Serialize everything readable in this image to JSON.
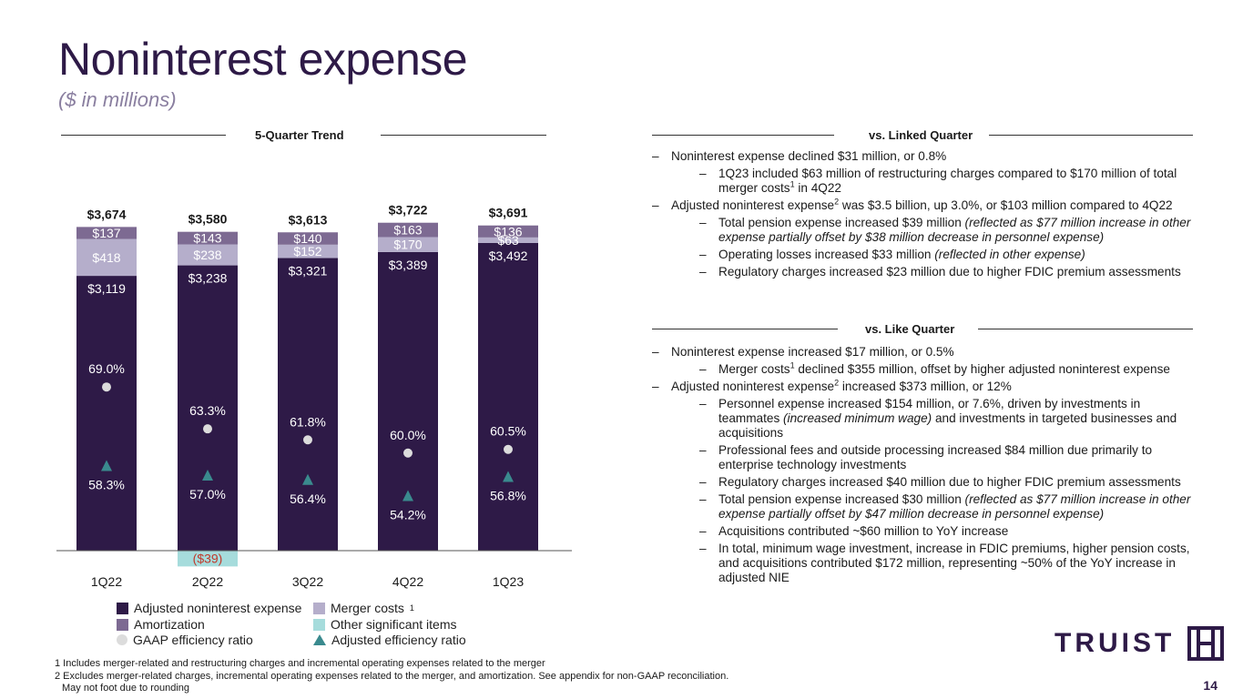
{
  "title": "Noninterest expense",
  "subtitle": "($ in millions)",
  "left_header": "5-Quarter Trend",
  "colors": {
    "adjusted": "#2e1a47",
    "amortization": "#7d6a92",
    "merger": "#b5aecb",
    "other": "#a6dcdc",
    "gaap": "#dcdcdc",
    "adjusted_ratio": "#3a8a8e",
    "negative_text": "#c0392b"
  },
  "chart_data": {
    "type": "bar",
    "stacked": true,
    "categories": [
      "1Q22",
      "2Q22",
      "3Q22",
      "4Q22",
      "1Q23"
    ],
    "totals": [
      "$3,674",
      "$3,580",
      "$3,613",
      "$3,722",
      "$3,691"
    ],
    "series": [
      {
        "name": "Adjusted noninterest expense",
        "values": [
          3119,
          3238,
          3321,
          3389,
          3492
        ],
        "labels": [
          "$3,119",
          "$3,238",
          "$3,321",
          "$3,389",
          "$3,492"
        ]
      },
      {
        "name": "Merger costs",
        "values": [
          418,
          238,
          152,
          170,
          63
        ],
        "labels": [
          "$418",
          "$238",
          "$152",
          "$170",
          "$63"
        ]
      },
      {
        "name": "Amortization",
        "values": [
          137,
          143,
          140,
          163,
          136
        ],
        "labels": [
          "$137",
          "$143",
          "$140",
          "$163",
          "$136"
        ]
      },
      {
        "name": "Other significant items",
        "values": [
          0,
          -39,
          0,
          0,
          0
        ],
        "labels": [
          "",
          "($39)",
          "",
          "",
          ""
        ]
      }
    ],
    "ratios": [
      {
        "name": "GAAP efficiency ratio",
        "values": [
          69.0,
          63.3,
          61.8,
          60.0,
          60.5
        ],
        "labels": [
          "69.0%",
          "63.3%",
          "61.8%",
          "60.0%",
          "60.5%"
        ]
      },
      {
        "name": "Adjusted efficiency ratio",
        "values": [
          58.3,
          57.0,
          56.4,
          54.2,
          56.8
        ],
        "labels": [
          "58.3%",
          "57.0%",
          "56.4%",
          "54.2%",
          "56.8%"
        ]
      }
    ]
  },
  "legend": {
    "adjusted": "Adjusted noninterest expense",
    "merger": "Merger costs",
    "merger_sup": "1",
    "amortization": "Amortization",
    "other": "Other significant items",
    "gaap": "GAAP efficiency ratio",
    "adjusted_ratio": "Adjusted efficiency ratio"
  },
  "linked": {
    "header": "vs. Linked Quarter",
    "items": [
      {
        "level": 1,
        "dash": "–",
        "parts": [
          {
            "t": "Noninterest expense declined $31 million, or 0.8%"
          }
        ]
      },
      {
        "level": 2,
        "dash": "–",
        "parts": [
          {
            "t": "1Q23 included $63 million of restructuring charges compared to $170 million of total merger costs"
          },
          {
            "t": "1",
            "s": true
          },
          {
            "t": " in 4Q22"
          }
        ]
      },
      {
        "level": 1,
        "dash": "–",
        "parts": [
          {
            "t": "Adjusted noninterest expense"
          },
          {
            "t": "2",
            "s": true
          },
          {
            "t": " was $3.5 billion, up 3.0%, or $103 million compared to 4Q22"
          }
        ]
      },
      {
        "level": 2,
        "dash": "–",
        "parts": [
          {
            "t": "Total pension expense increased $39 million "
          },
          {
            "t": "(reflected as $77 million increase in other expense partially offset by $38 million decrease in personnel expense)",
            "i": true
          }
        ]
      },
      {
        "level": 2,
        "dash": "–",
        "parts": [
          {
            "t": "Operating losses increased $33 million "
          },
          {
            "t": "(reflected in other expense)",
            "i": true
          }
        ]
      },
      {
        "level": 2,
        "dash": "–",
        "parts": [
          {
            "t": "Regulatory charges increased $23 million due to higher FDIC premium assessments"
          }
        ]
      }
    ]
  },
  "like": {
    "header": "vs. Like Quarter",
    "items": [
      {
        "level": 1,
        "dash": "–",
        "parts": [
          {
            "t": "Noninterest expense increased $17 million, or 0.5%"
          }
        ]
      },
      {
        "level": 2,
        "dash": "–",
        "parts": [
          {
            "t": "Merger costs"
          },
          {
            "t": "1",
            "s": true
          },
          {
            "t": " declined $355 million, offset by higher adjusted noninterest expense"
          }
        ]
      },
      {
        "level": 1,
        "dash": "–",
        "parts": [
          {
            "t": "Adjusted noninterest expense"
          },
          {
            "t": "2",
            "s": true
          },
          {
            "t": " increased $373 million, or 12%"
          }
        ]
      },
      {
        "level": 2,
        "dash": "–",
        "parts": [
          {
            "t": "Personnel expense increased $154 million, or 7.6%, driven by investments in teammates "
          },
          {
            "t": "(increased minimum wage)",
            "i": true
          },
          {
            "t": " and investments in targeted businesses and acquisitions"
          }
        ]
      },
      {
        "level": 2,
        "dash": "–",
        "parts": [
          {
            "t": "Professional fees and outside processing increased $84 million due primarily to enterprise technology investments"
          }
        ]
      },
      {
        "level": 2,
        "dash": "–",
        "parts": [
          {
            "t": "Regulatory charges increased $40 million due to higher FDIC premium assessments"
          }
        ]
      },
      {
        "level": 2,
        "dash": "–",
        "parts": [
          {
            "t": "Total pension expense increased $30 million "
          },
          {
            "t": "(reflected as $77 million increase in other expense partially offset by $47 million decrease in personnel expense)",
            "i": true
          }
        ]
      },
      {
        "level": 2,
        "dash": "–",
        "parts": [
          {
            "t": "Acquisitions contributed ~$60 million to YoY increase"
          }
        ]
      },
      {
        "level": 2,
        "dash": "–",
        "parts": [
          {
            "t": "In total, minimum wage investment, increase in FDIC premiums, higher pension costs, and acquisitions contributed $172 million, representing ~50% of the YoY increase in adjusted NIE"
          }
        ]
      }
    ]
  },
  "footnotes": [
    "1 Includes merger-related and restructuring charges and incremental operating expenses related to the merger",
    "2 Excludes merger-related charges, incremental operating expenses related to the merger, and amortization. See appendix for non-GAAP reconciliation.",
    "May not foot due to rounding"
  ],
  "page_number": "14",
  "logo_text": "TRUIST"
}
